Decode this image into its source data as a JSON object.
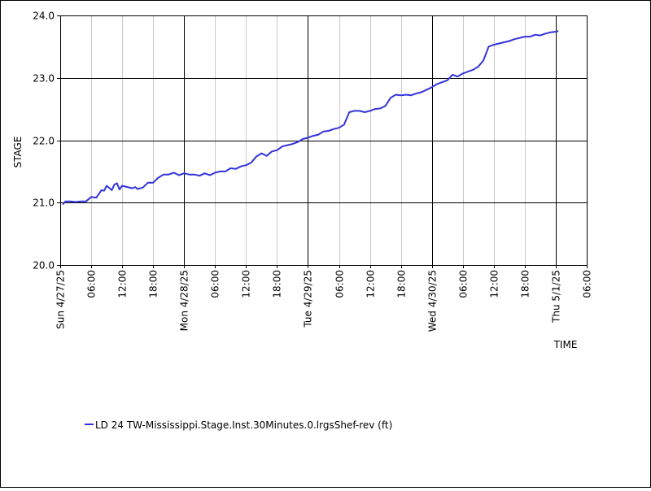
{
  "chart_data": {
    "type": "line",
    "title": "",
    "xlabel": "TIME",
    "ylabel": "STAGE",
    "ylim": [
      20.0,
      24.0
    ],
    "yticks": [
      20.0,
      21.0,
      22.0,
      23.0,
      24.0
    ],
    "ytick_labels": [
      "20.0",
      "21.0",
      "22.0",
      "23.0",
      "24.0"
    ],
    "xlim": [
      "2025-04-27T00:00",
      "2025-05-01T06:00"
    ],
    "xticks": [
      {
        "t": "2025-04-27T00:00",
        "label": "Sun 4/27/25",
        "major": true
      },
      {
        "t": "2025-04-27T06:00",
        "label": "06:00",
        "major": false
      },
      {
        "t": "2025-04-27T12:00",
        "label": "12:00",
        "major": false
      },
      {
        "t": "2025-04-27T18:00",
        "label": "18:00",
        "major": false
      },
      {
        "t": "2025-04-28T00:00",
        "label": "Mon 4/28/25",
        "major": true
      },
      {
        "t": "2025-04-28T06:00",
        "label": "06:00",
        "major": false
      },
      {
        "t": "2025-04-28T12:00",
        "label": "12:00",
        "major": false
      },
      {
        "t": "2025-04-28T18:00",
        "label": "18:00",
        "major": false
      },
      {
        "t": "2025-04-29T00:00",
        "label": "Tue 4/29/25",
        "major": true
      },
      {
        "t": "2025-04-29T06:00",
        "label": "06:00",
        "major": false
      },
      {
        "t": "2025-04-29T12:00",
        "label": "12:00",
        "major": false
      },
      {
        "t": "2025-04-29T18:00",
        "label": "18:00",
        "major": false
      },
      {
        "t": "2025-04-30T00:00",
        "label": "Wed 4/30/25",
        "major": true
      },
      {
        "t": "2025-04-30T06:00",
        "label": "06:00",
        "major": false
      },
      {
        "t": "2025-04-30T12:00",
        "label": "12:00",
        "major": false
      },
      {
        "t": "2025-04-30T18:00",
        "label": "18:00",
        "major": false
      },
      {
        "t": "2025-05-01T00:00",
        "label": "Thu 5/1/25",
        "major": true
      },
      {
        "t": "2025-05-01T06:00",
        "label": "06:00",
        "major": false
      }
    ],
    "grid": true,
    "legend_position": "bottom-left",
    "series": [
      {
        "name": "LD 24 TW-Mississippi.Stage.Inst.30Minutes.0.lrgsShef-rev (ft)",
        "color": "#3333dd",
        "x": [
          "2025-04-27T00:30",
          "2025-04-27T01:00",
          "2025-04-27T02:00",
          "2025-04-27T03:00",
          "2025-04-27T04:00",
          "2025-04-27T05:00",
          "2025-04-27T06:00",
          "2025-04-27T07:00",
          "2025-04-27T08:00",
          "2025-04-27T08:30",
          "2025-04-27T09:00",
          "2025-04-27T10:00",
          "2025-04-27T10:30",
          "2025-04-27T11:00",
          "2025-04-27T11:30",
          "2025-04-27T12:00",
          "2025-04-27T13:00",
          "2025-04-27T14:00",
          "2025-04-27T14:30",
          "2025-04-27T15:00",
          "2025-04-27T16:00",
          "2025-04-27T17:00",
          "2025-04-27T18:00",
          "2025-04-27T19:00",
          "2025-04-27T20:00",
          "2025-04-27T21:00",
          "2025-04-27T22:00",
          "2025-04-27T23:00",
          "2025-04-28T00:00",
          "2025-04-28T01:00",
          "2025-04-28T02:00",
          "2025-04-28T03:00",
          "2025-04-28T04:00",
          "2025-04-28T05:00",
          "2025-04-28T06:00",
          "2025-04-28T07:00",
          "2025-04-28T08:00",
          "2025-04-28T09:00",
          "2025-04-28T10:00",
          "2025-04-28T11:00",
          "2025-04-28T12:00",
          "2025-04-28T13:00",
          "2025-04-28T14:00",
          "2025-04-28T15:00",
          "2025-04-28T16:00",
          "2025-04-28T17:00",
          "2025-04-28T18:00",
          "2025-04-28T19:00",
          "2025-04-28T20:00",
          "2025-04-28T21:00",
          "2025-04-28T22:00",
          "2025-04-28T23:00",
          "2025-04-29T00:00",
          "2025-04-29T01:00",
          "2025-04-29T02:00",
          "2025-04-29T03:00",
          "2025-04-29T04:00",
          "2025-04-29T05:00",
          "2025-04-29T06:00",
          "2025-04-29T07:00",
          "2025-04-29T08:00",
          "2025-04-29T09:00",
          "2025-04-29T10:00",
          "2025-04-29T11:00",
          "2025-04-29T12:00",
          "2025-04-29T13:00",
          "2025-04-29T14:00",
          "2025-04-29T15:00",
          "2025-04-29T16:00",
          "2025-04-29T17:00",
          "2025-04-29T18:00",
          "2025-04-29T19:00",
          "2025-04-29T20:00",
          "2025-04-29T21:00",
          "2025-04-29T22:00",
          "2025-04-29T23:00",
          "2025-04-30T00:00",
          "2025-04-30T01:00",
          "2025-04-30T02:00",
          "2025-04-30T03:00",
          "2025-04-30T04:00",
          "2025-04-30T05:00",
          "2025-04-30T06:00",
          "2025-04-30T07:00",
          "2025-04-30T08:00",
          "2025-04-30T09:00",
          "2025-04-30T10:00",
          "2025-04-30T11:00",
          "2025-04-30T12:00",
          "2025-04-30T13:00",
          "2025-04-30T14:00",
          "2025-04-30T15:00",
          "2025-04-30T16:00",
          "2025-04-30T17:00",
          "2025-04-30T18:00",
          "2025-04-30T19:00",
          "2025-04-30T20:00",
          "2025-04-30T21:00",
          "2025-04-30T22:00",
          "2025-04-30T23:00",
          "2025-05-01T00:00",
          "2025-05-01T00:30"
        ],
        "y": [
          20.97,
          21.02,
          21.02,
          21.01,
          21.02,
          21.02,
          21.09,
          21.08,
          21.2,
          21.19,
          21.27,
          21.2,
          21.29,
          21.31,
          21.21,
          21.27,
          21.25,
          21.23,
          21.25,
          21.22,
          21.24,
          21.32,
          21.32,
          21.4,
          21.45,
          21.45,
          21.48,
          21.44,
          21.47,
          21.45,
          21.45,
          21.43,
          21.47,
          21.44,
          21.48,
          21.5,
          21.5,
          21.55,
          21.54,
          21.58,
          21.6,
          21.64,
          21.74,
          21.79,
          21.75,
          21.82,
          21.84,
          21.9,
          21.92,
          21.94,
          21.97,
          22.02,
          22.04,
          22.07,
          22.09,
          22.14,
          22.15,
          22.18,
          22.2,
          22.25,
          22.45,
          22.47,
          22.47,
          22.45,
          22.47,
          22.5,
          22.51,
          22.55,
          22.68,
          22.73,
          22.72,
          22.73,
          22.72,
          22.75,
          22.77,
          22.81,
          22.85,
          22.9,
          22.93,
          22.96,
          23.05,
          23.02,
          23.07,
          23.1,
          23.13,
          23.18,
          23.28,
          23.5,
          23.53,
          23.55,
          23.57,
          23.59,
          23.62,
          23.64,
          23.66,
          23.66,
          23.69,
          23.68,
          23.71,
          23.73,
          23.74,
          23.75
        ]
      }
    ]
  }
}
